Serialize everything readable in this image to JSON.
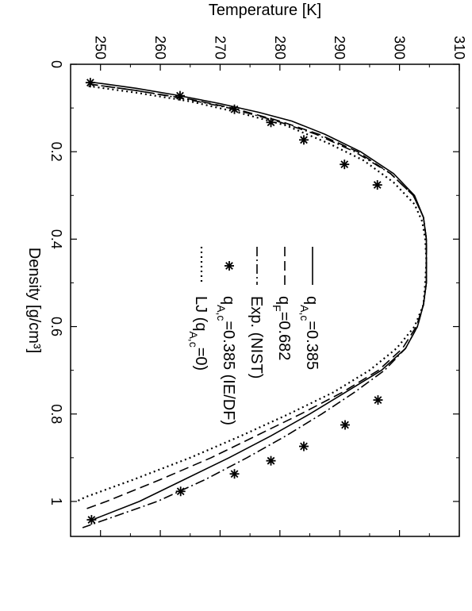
{
  "chart_data": {
    "type": "line",
    "orientation": "rotated-90-clockwise",
    "xlabel": "Density [g/cm³]",
    "ylabel": "Temperature [K]",
    "xlim": [
      0,
      1.08
    ],
    "ylim": [
      245,
      310
    ],
    "xticks": [
      0,
      0.2,
      0.4,
      0.6,
      0.8,
      1
    ],
    "xtick_labels": [
      "0",
      "0.2",
      "0.4",
      "0.6",
      "0.8",
      "1"
    ],
    "yticks": [
      250,
      260,
      270,
      280,
      290,
      300,
      310
    ],
    "ytick_labels": [
      "250",
      "260",
      "270",
      "280",
      "290",
      "300",
      "310"
    ],
    "grid": false,
    "legend_position": "center",
    "series": [
      {
        "name": "q_{A,c}=0.385",
        "style": "solid",
        "x": [
          0.04,
          0.055,
          0.07,
          0.09,
          0.11,
          0.13,
          0.16,
          0.2,
          0.25,
          0.3,
          0.35,
          0.4,
          0.45,
          0.5,
          0.55,
          0.6,
          0.65,
          0.7,
          0.75,
          0.8,
          0.85,
          0.9,
          0.95,
          1.0,
          1.04
        ],
        "y": [
          248,
          256,
          262.5,
          270,
          276.5,
          282,
          287.5,
          293.5,
          299,
          302.5,
          304,
          304.5,
          304.5,
          304.5,
          304,
          303,
          301,
          297,
          291,
          285,
          278.5,
          271.5,
          264,
          256.5,
          249
        ]
      },
      {
        "name": "q_F=0.682",
        "style": "dashed",
        "x": [
          0.045,
          0.06,
          0.08,
          0.1,
          0.13,
          0.16,
          0.2,
          0.25,
          0.3,
          0.35,
          0.4,
          0.45,
          0.5,
          0.55,
          0.6,
          0.65,
          0.7,
          0.75,
          0.8,
          0.85,
          0.9,
          0.95,
          1.0,
          1.02
        ],
        "y": [
          248,
          256,
          265,
          272,
          280,
          286.5,
          293,
          298.5,
          302.3,
          304,
          304.5,
          304.5,
          304.5,
          304,
          302.8,
          300.5,
          296.5,
          290.5,
          283.5,
          276,
          268.5,
          260,
          251,
          247
        ]
      },
      {
        "name": "Exp. (NIST)",
        "style": "dashdot",
        "x": [
          0.045,
          0.06,
          0.08,
          0.1,
          0.13,
          0.16,
          0.2,
          0.25,
          0.3,
          0.35,
          0.4,
          0.45,
          0.5,
          0.55,
          0.6,
          0.65,
          0.7,
          0.75,
          0.8,
          0.85,
          0.9,
          0.95,
          1.0,
          1.06
        ],
        "y": [
          248,
          256,
          264.5,
          271.5,
          279.5,
          286,
          292.5,
          298.5,
          302.3,
          304,
          304.5,
          304.5,
          304.5,
          304,
          303,
          301,
          297.5,
          292.5,
          287,
          281,
          274.5,
          267.5,
          259.5,
          247
        ]
      },
      {
        "name": "q_{A,c}=0.385 (IE/DF)",
        "style": "markers",
        "x": [
          0.042,
          0.072,
          0.103,
          0.133,
          0.173,
          0.229,
          0.276,
          0.768,
          0.825,
          0.874,
          0.907,
          0.937,
          0.977,
          1.042
        ],
        "y": [
          248.3,
          263.3,
          272.4,
          278.5,
          284,
          290.8,
          296.3,
          296.4,
          290.9,
          284,
          278.5,
          272.4,
          263.4,
          248.5
        ]
      },
      {
        "name": "LJ (q_{A,c}=0)",
        "style": "dotted",
        "x": [
          0.05,
          0.065,
          0.085,
          0.11,
          0.14,
          0.18,
          0.22,
          0.27,
          0.32,
          0.36,
          0.4,
          0.45,
          0.5,
          0.55,
          0.6,
          0.65,
          0.7,
          0.75,
          0.8,
          0.85,
          0.9,
          0.95,
          0.99,
          1.0
        ],
        "y": [
          248,
          256,
          265,
          273,
          281,
          288,
          294,
          299,
          302.5,
          303.8,
          304.3,
          304.5,
          304.3,
          304,
          302.5,
          299.5,
          295,
          289,
          281.5,
          273.5,
          265,
          255.5,
          247.5,
          246
        ]
      }
    ]
  }
}
